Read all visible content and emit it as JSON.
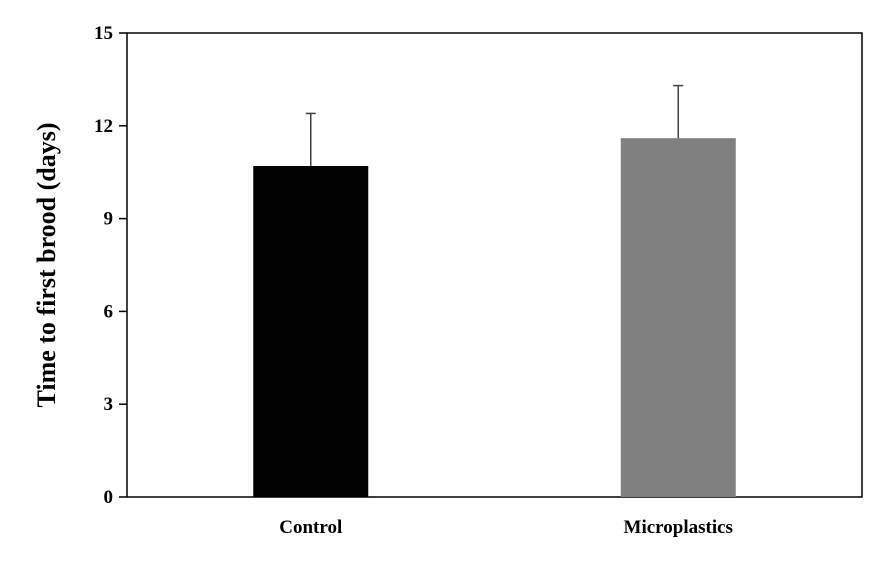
{
  "chart_data": {
    "type": "bar",
    "categories": [
      "Control",
      "Microplastics"
    ],
    "values": [
      10.7,
      11.6
    ],
    "error_plus": [
      1.7,
      1.7
    ],
    "colors": [
      "#000000",
      "#808080"
    ],
    "xlabel": "",
    "ylabel": "Time to first brood (days)",
    "ylim": [
      0,
      15
    ],
    "yticks": [
      0,
      3,
      6,
      9,
      12,
      15
    ],
    "grid": false,
    "legend": "none"
  }
}
